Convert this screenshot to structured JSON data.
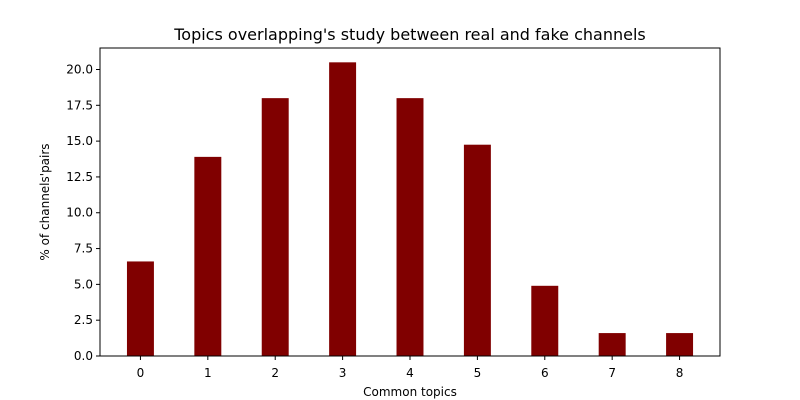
{
  "chart_data": {
    "type": "bar",
    "title": "Topics overlapping's study between real and fake channels",
    "xlabel": "Common topics",
    "ylabel": "% of channels'pairs",
    "categories": [
      "0",
      "1",
      "2",
      "3",
      "4",
      "5",
      "6",
      "7",
      "8"
    ],
    "values": [
      6.6,
      13.9,
      18.0,
      20.5,
      18.0,
      14.75,
      4.9,
      1.6,
      1.6
    ],
    "ylim": [
      0,
      21.5
    ],
    "yticks": [
      "0.0",
      "2.5",
      "5.0",
      "7.5",
      "10.0",
      "12.5",
      "15.0",
      "17.5",
      "20.0"
    ],
    "bar_color": "#800000",
    "grid": false,
    "legend": "none"
  }
}
